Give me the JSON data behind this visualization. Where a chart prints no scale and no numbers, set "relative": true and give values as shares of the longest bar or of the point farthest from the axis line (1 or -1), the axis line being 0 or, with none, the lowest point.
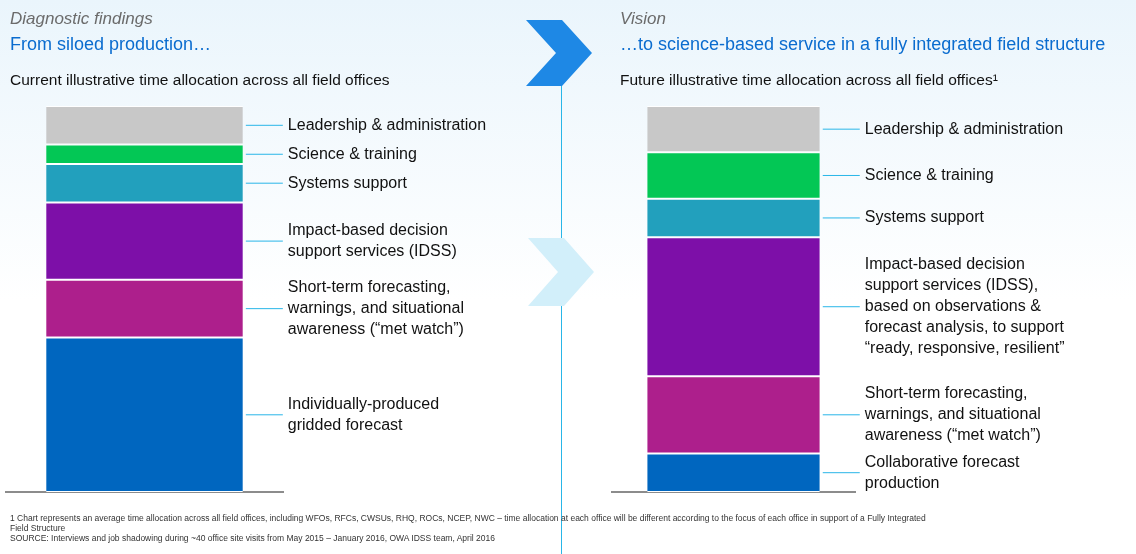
{
  "chart_data": [
    {
      "type": "bar",
      "stacked": true,
      "relative": true,
      "title": "Diagnostic findings",
      "subtitle": "From siloed production…",
      "categories": [
        null
      ],
      "legend": false,
      "annotations": [
        "Current illustrative time allocation across all field offices",
        "1 Chart represents an average time allocation across all field offices, including WFOs, RFCs, CWSUs, RHQ, ROCs, NCEP, NWC – time allocation at each office will be different according to the focus of each office in support of a Fully Integrated Field Structure",
        "SOURCE: Interviews and job shadowing during ~40 office site visits from May 2015 – January 2016, OWA IDSS team, April 2016"
      ],
      "series": [
        {
          "name": "Individually-produced gridded forecast",
          "color": "#0066bf",
          "values": [
            0.4
          ]
        },
        {
          "name": "Short-term forecasting, warnings, and situational awareness (“met watch”)",
          "color": "#ad1f8c",
          "values": [
            0.15
          ]
        },
        {
          "name": "Impact-based decision support services (IDSS)",
          "color": "#7d0fa8",
          "values": [
            0.2
          ]
        },
        {
          "name": "Systems support",
          "color": "#22a0bd",
          "values": [
            0.1
          ]
        },
        {
          "name": "Science & training",
          "color": "#03c755",
          "values": [
            0.05
          ]
        },
        {
          "name": "Leadership & administration",
          "color": "#c8c8c8",
          "values": [
            0.1
          ]
        }
      ]
    },
    {
      "type": "bar",
      "stacked": true,
      "relative": true,
      "title": "Vision",
      "subtitle": "…to science-based service in a fully integrated field structure",
      "categories": [
        null
      ],
      "legend": false,
      "annotations": [
        "Future illustrative time allocation across all field offices¹"
      ],
      "series": [
        {
          "name": "Collaborative forecast production",
          "color": "#0066bf",
          "values": [
            0.1
          ]
        },
        {
          "name": "Short-term forecasting, warnings, and situational awareness (“met watch”)",
          "color": "#ad1f8c",
          "values": [
            0.2
          ]
        },
        {
          "name": "Impact-based decision support services (IDSS), based on observations & forecast analysis, to support “ready, responsive, resilient”",
          "color": "#7d0fa8",
          "values": [
            0.36
          ]
        },
        {
          "name": "Systems support",
          "color": "#22a0bd",
          "values": [
            0.1
          ]
        },
        {
          "name": "Science & training",
          "color": "#03c755",
          "values": [
            0.12
          ]
        },
        {
          "name": "Leadership & administration",
          "color": "#c8c8c8",
          "values": [
            0.12
          ]
        }
      ]
    }
  ]
}
